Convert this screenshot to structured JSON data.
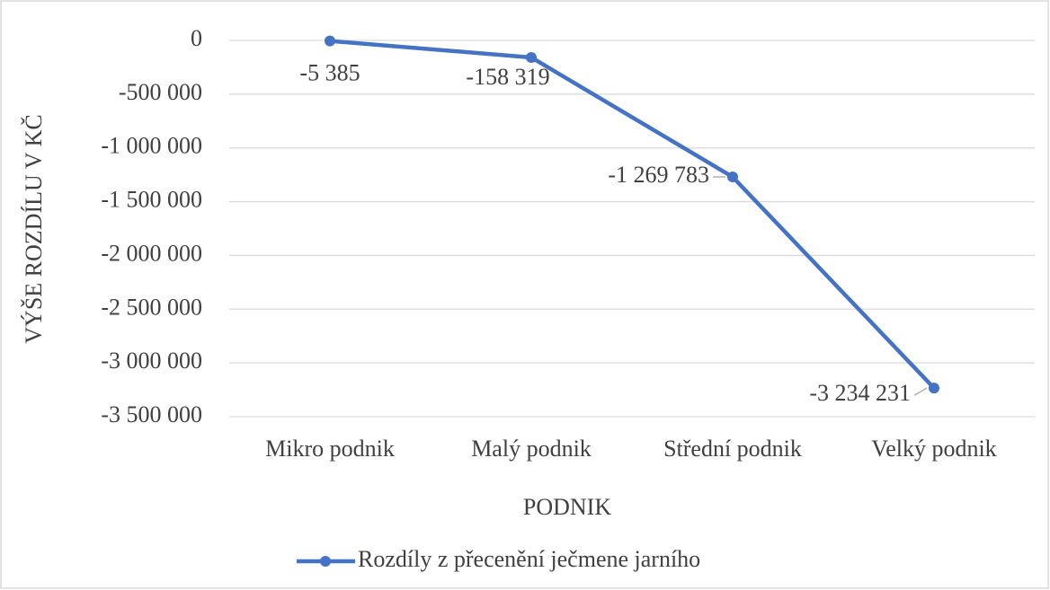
{
  "chart_data": {
    "type": "line",
    "xlabel": "PODNIK",
    "ylabel": "VÝŠE ROZDÍLU V KČ",
    "categories": [
      "Mikro podnik",
      "Malý podnik",
      "Střední podnik",
      "Velký podnik"
    ],
    "series": [
      {
        "name": "Rozdíly z přecenění ječmene jarního",
        "color": "#4472c4",
        "values": [
          -5385,
          -158319,
          -1269783,
          -3234231
        ],
        "value_labels": [
          "-5 385",
          "-158 319",
          "-1 269 783",
          "-3 234 231"
        ]
      }
    ],
    "ylim": [
      -3500000,
      0
    ],
    "yticks": [
      0,
      {
        "value": -500000,
        "label": "-500 000"
      },
      {
        "value": -1000000,
        "label": "-1 000 000"
      },
      {
        "value": -1500000,
        "label": "-1 500 000"
      },
      {
        "value": -2000000,
        "label": "-2 000 000"
      },
      {
        "value": -2500000,
        "label": "-2 500 000"
      },
      {
        "value": -3000000,
        "label": "-3 000 000"
      },
      {
        "value": -3500000,
        "label": "-3 500 000"
      }
    ],
    "grid": true,
    "legend": "bottom"
  }
}
